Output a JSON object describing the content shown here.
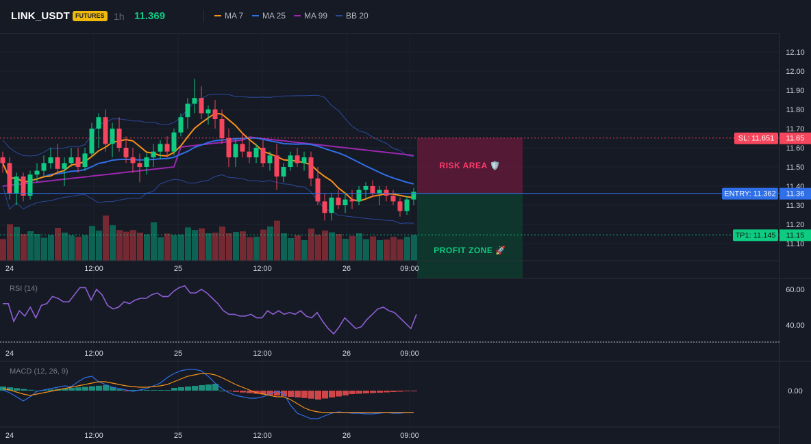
{
  "header": {
    "symbol": "LINK_USDT",
    "badge": "FUTURES",
    "timeframe": "1h",
    "price": "11.369",
    "indicators": [
      {
        "label": "MA 7",
        "color": "#f7931a"
      },
      {
        "label": "MA 25",
        "color": "#2f6fe8"
      },
      {
        "label": "MA 99",
        "color": "#9c27b0"
      },
      {
        "label": "BB 20",
        "color": "#2b4a9c"
      }
    ]
  },
  "price_axis": {
    "labels": [
      "12.10",
      "12.00",
      "11.90",
      "11.80",
      "11.70",
      "11.60",
      "11.50",
      "11.40",
      "11.30",
      "11.20",
      "11.10"
    ],
    "tags": {
      "sl": "SL: 11.651",
      "sl_value": "11.65",
      "entry": "ENTRY: 11.362",
      "entry_value": "11.36",
      "tp1": "TP1: 11.145",
      "tp1_value": "11.15"
    }
  },
  "time_axis": [
    "24",
    "12:00",
    "25",
    "12:00",
    "26",
    "09:00"
  ],
  "zones": {
    "risk_label": "RISK AREA 🛡️",
    "profit_label": "PROFIT ZONE 🚀"
  },
  "rsi": {
    "title": "RSI (14)",
    "labels": [
      "60.00",
      "40.00"
    ]
  },
  "macd": {
    "title": "MACD (12, 26, 9)",
    "labels": [
      "0.00"
    ]
  },
  "colors": {
    "up": "#0ecb81",
    "down": "#f6465d",
    "ma7": "#f7931a",
    "ma25": "#2f6fe8",
    "ma99": "#9c27b0",
    "bb": "#2b4a9c",
    "rsi": "#8e5fd6",
    "macd": "#2f6fe8",
    "signal": "#f7931a"
  },
  "chart_data": {
    "type": "candlestick",
    "ylim": [
      11.05,
      12.15
    ],
    "sl": 11.651,
    "entry": 11.362,
    "tp1": 11.145,
    "candles": [
      [
        11.55,
        11.58,
        11.47,
        11.52
      ],
      [
        11.52,
        11.55,
        11.33,
        11.36
      ],
      [
        11.36,
        11.47,
        11.3,
        11.45
      ],
      [
        11.45,
        11.47,
        11.32,
        11.35
      ],
      [
        11.35,
        11.48,
        11.33,
        11.46
      ],
      [
        11.46,
        11.52,
        11.42,
        11.48
      ],
      [
        11.48,
        11.56,
        11.45,
        11.52
      ],
      [
        11.52,
        11.6,
        11.49,
        11.55
      ],
      [
        11.55,
        11.62,
        11.47,
        11.49
      ],
      [
        11.49,
        11.55,
        11.4,
        11.52
      ],
      [
        11.52,
        11.6,
        11.5,
        11.55
      ],
      [
        11.55,
        11.6,
        11.47,
        11.5
      ],
      [
        11.5,
        11.6,
        11.48,
        11.57
      ],
      [
        11.57,
        11.73,
        11.55,
        11.7
      ],
      [
        11.7,
        11.78,
        11.6,
        11.76
      ],
      [
        11.76,
        11.8,
        11.58,
        11.62
      ],
      [
        11.62,
        11.73,
        11.55,
        11.7
      ],
      [
        11.7,
        11.76,
        11.58,
        11.6
      ],
      [
        11.6,
        11.66,
        11.52,
        11.55
      ],
      [
        11.55,
        11.6,
        11.47,
        11.52
      ],
      [
        11.52,
        11.57,
        11.42,
        11.5
      ],
      [
        11.5,
        11.57,
        11.46,
        11.55
      ],
      [
        11.55,
        11.62,
        11.5,
        11.58
      ],
      [
        11.58,
        11.64,
        11.54,
        11.62
      ],
      [
        11.62,
        11.66,
        11.55,
        11.58
      ],
      [
        11.58,
        11.7,
        11.56,
        11.68
      ],
      [
        11.68,
        11.78,
        11.66,
        11.76
      ],
      [
        11.76,
        11.86,
        11.7,
        11.83
      ],
      [
        11.83,
        11.96,
        11.78,
        11.86
      ],
      [
        11.86,
        11.92,
        11.75,
        11.78
      ],
      [
        11.78,
        11.82,
        11.72,
        11.8
      ],
      [
        11.8,
        11.85,
        11.7,
        11.75
      ],
      [
        11.75,
        11.8,
        11.62,
        11.65
      ],
      [
        11.65,
        11.7,
        11.5,
        11.55
      ],
      [
        11.55,
        11.65,
        11.5,
        11.62
      ],
      [
        11.62,
        11.68,
        11.55,
        11.58
      ],
      [
        11.58,
        11.64,
        11.52,
        11.55
      ],
      [
        11.55,
        11.62,
        11.52,
        11.6
      ],
      [
        11.6,
        11.64,
        11.5,
        11.52
      ],
      [
        11.52,
        11.58,
        11.48,
        11.56
      ],
      [
        11.56,
        11.62,
        11.38,
        11.45
      ],
      [
        11.45,
        11.52,
        11.42,
        11.5
      ],
      [
        11.5,
        11.58,
        11.48,
        11.56
      ],
      [
        11.56,
        11.6,
        11.5,
        11.52
      ],
      [
        11.52,
        11.58,
        11.48,
        11.55
      ],
      [
        11.55,
        11.58,
        11.4,
        11.44
      ],
      [
        11.44,
        11.5,
        11.3,
        11.32
      ],
      [
        11.32,
        11.36,
        11.22,
        11.26
      ],
      [
        11.26,
        11.36,
        11.22,
        11.34
      ],
      [
        11.34,
        11.38,
        11.28,
        11.3
      ],
      [
        11.3,
        11.36,
        11.26,
        11.33
      ],
      [
        11.33,
        11.38,
        11.28,
        11.32
      ],
      [
        11.32,
        11.4,
        11.3,
        11.38
      ],
      [
        11.38,
        11.42,
        11.33,
        11.4
      ],
      [
        11.4,
        11.43,
        11.34,
        11.36
      ],
      [
        11.36,
        11.4,
        11.3,
        11.38
      ],
      [
        11.38,
        11.4,
        11.32,
        11.35
      ],
      [
        11.35,
        11.38,
        11.3,
        11.32
      ],
      [
        11.32,
        11.34,
        11.24,
        11.27
      ],
      [
        11.27,
        11.35,
        11.25,
        11.33
      ],
      [
        11.33,
        11.39,
        11.3,
        11.37
      ]
    ]
  }
}
